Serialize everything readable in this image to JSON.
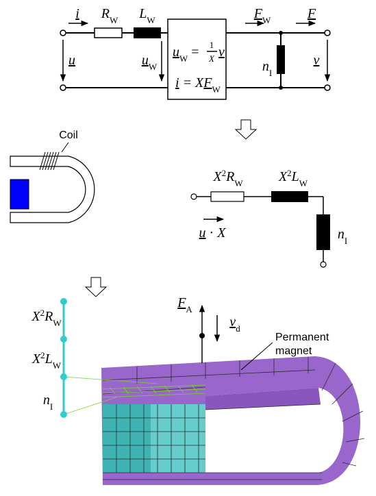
{
  "top_circuit": {
    "current": "i",
    "resistance": {
      "symbol": "R",
      "sub": "W"
    },
    "inductance": {
      "symbol": "L",
      "sub": "W"
    },
    "voltage": "u",
    "inductor_voltage": {
      "symbol": "u",
      "sub": "W"
    },
    "equation_1": {
      "symbol": "u",
      "sub": "W",
      "operator": " = ",
      "numerator": "1",
      "denominator": "X",
      "rhs": "v"
    },
    "equation_2": {
      "symbol": "i",
      "operator": " = X",
      "rhs": "F",
      "rhs_sub": "W"
    },
    "force_w": {
      "symbol": "F",
      "sub": "W"
    },
    "force": "F",
    "compliance": {
      "symbol": "n",
      "sub": "I"
    },
    "velocity": "v"
  },
  "coil_sketch": {
    "label": "Coil"
  },
  "equivalent_circuit": {
    "resistance": {
      "factor": "X",
      "exponent": "2",
      "symbol": "R",
      "sub": "W"
    },
    "inductance": {
      "factor": "X",
      "exponent": "2",
      "symbol": "L",
      "sub": "W"
    },
    "compliance": {
      "symbol": "n",
      "sub": "I"
    },
    "voltage": {
      "symbol": "u",
      "operator": " · ",
      "factor": "X"
    }
  },
  "fe_model": {
    "resistance": {
      "factor": "X",
      "exponent": "2",
      "symbol": "R",
      "sub": "W"
    },
    "inductance": {
      "factor": "X",
      "exponent": "2",
      "symbol": "L",
      "sub": "W"
    },
    "compliance": {
      "symbol": "n",
      "sub": "I"
    },
    "force": {
      "symbol": "F",
      "sub": "A"
    },
    "velocity": {
      "symbol": "v",
      "sub": "d"
    },
    "magnet_label": [
      "Permanent",
      "magnet"
    ]
  }
}
